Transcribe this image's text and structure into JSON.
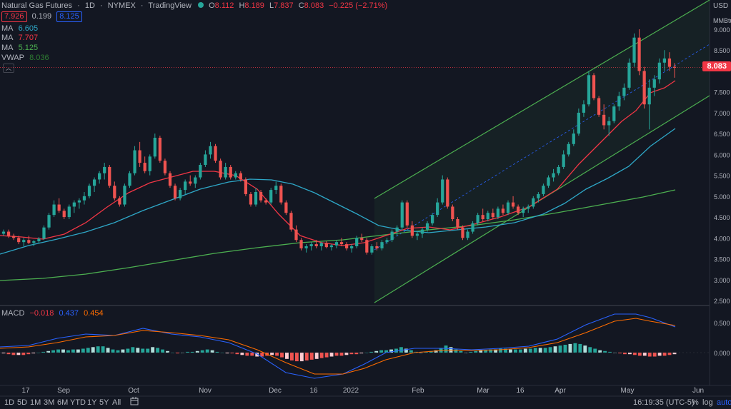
{
  "header": {
    "symbol": "Natural Gas Futures",
    "interval": "1D",
    "exchange": "NYMEX",
    "source": "TradingView",
    "ohlc": {
      "o_label": "O",
      "o": "8.112",
      "h_label": "H",
      "h": "8.189",
      "l_label": "L",
      "l": "7.837",
      "c_label": "C",
      "c": "8.083",
      "change": "−0.225 (−2.71%)"
    },
    "bid": "7.926",
    "spread": "0.199",
    "ask": "8.125"
  },
  "indicators": [
    {
      "name": "MA",
      "value": "6.605",
      "color": "#2ea7c7"
    },
    {
      "name": "MA",
      "value": "7.707",
      "color": "#f23645"
    },
    {
      "name": "MA",
      "value": "5.125",
      "color": "#4caf50"
    },
    {
      "name": "VWAP",
      "value": "8.036",
      "color": "#2e7d32"
    }
  ],
  "macd_legend": {
    "name": "MACD",
    "hist": "−0.018",
    "macd": "0.437",
    "signal": "0.454"
  },
  "price_axis": {
    "currency": "USD",
    "unit": "MMBtu",
    "ticks": [
      "9.000",
      "8.500",
      "7.500",
      "7.000",
      "6.500",
      "6.000",
      "5.500",
      "5.000",
      "4.500",
      "4.000",
      "3.500",
      "3.000",
      "2.500"
    ],
    "last_price": "8.083",
    "macd_ticks": [
      "0.500",
      "0.000"
    ]
  },
  "time_axis": {
    "ticks": [
      "17",
      "Sep",
      "Oct",
      "Nov",
      "Dec",
      "16",
      "2022",
      "Feb",
      "Mar",
      "16",
      "Apr",
      "May",
      "Jun"
    ]
  },
  "bottom_bar": {
    "ranges": [
      "1D",
      "5D",
      "1M",
      "3M",
      "6M",
      "YTD",
      "1Y",
      "5Y",
      "All"
    ],
    "clock": "16:19:35 (UTC-5)",
    "percent": "%",
    "log": "log",
    "auto": "auto"
  },
  "colors": {
    "up": "#26a69a",
    "down": "#ef5350",
    "channel": "#4caf50",
    "ma_fast": "#f23645",
    "ma_mid": "#2ea7c7",
    "ma_slow": "#4caf50",
    "macd_line": "#2962ff",
    "signal_line": "#ff6d00"
  }
}
